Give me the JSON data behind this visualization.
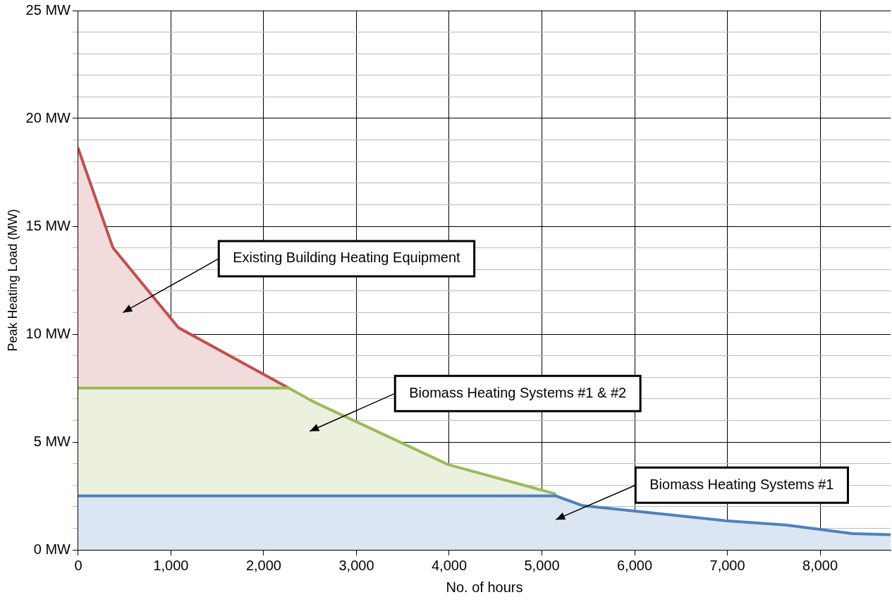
{
  "chart_data": {
    "type": "area",
    "xlabel": "No. of hours",
    "ylabel": "Peak Heating Load (MW)",
    "xlim": [
      0,
      8760
    ],
    "xticks": [
      0,
      {
        "value": 1000,
        "label": "1,000"
      },
      {
        "value": 2000,
        "label": "2,000"
      },
      {
        "value": 3000,
        "label": "3,000"
      },
      {
        "value": 4000,
        "label": "4,000"
      },
      {
        "value": 5000,
        "label": "5,000"
      },
      {
        "value": 6000,
        "label": "6,000"
      },
      {
        "value": 7000,
        "label": "7,000"
      },
      {
        "value": 8000,
        "label": "8,000"
      }
    ],
    "ylim": [
      0,
      25
    ],
    "yticks": [
      {
        "value": 0,
        "label": "0 MW"
      },
      {
        "value": 1,
        "label": null
      },
      {
        "value": 2,
        "label": null
      },
      {
        "value": 3,
        "label": null
      },
      {
        "value": 4,
        "label": null
      },
      {
        "value": 5,
        "label": "5 MW"
      },
      {
        "value": 6,
        "label": null
      },
      {
        "value": 7,
        "label": null
      },
      {
        "value": 8,
        "label": null
      },
      {
        "value": 9,
        "label": null
      },
      {
        "value": 10,
        "label": "10 MW"
      },
      {
        "value": 11,
        "label": null
      },
      {
        "value": 12,
        "label": null
      },
      {
        "value": 13,
        "label": null
      },
      {
        "value": 14,
        "label": null
      },
      {
        "value": 15,
        "label": "15 MW"
      },
      {
        "value": 16,
        "label": null
      },
      {
        "value": 17,
        "label": null
      },
      {
        "value": 18,
        "label": null
      },
      {
        "value": 19,
        "label": null
      },
      {
        "value": 20,
        "label": "20 MW"
      },
      {
        "value": 21,
        "label": null
      },
      {
        "value": 22,
        "label": null
      },
      {
        "value": 23,
        "label": null
      },
      {
        "value": 24,
        "label": null
      },
      {
        "value": 25,
        "label": "25 MW"
      }
    ],
    "grid": true,
    "legend": false,
    "series": [
      {
        "color": "#4f81bd",
        "x": [
          0,
          5150,
          5440,
          6000,
          6980,
          7630,
          8350,
          8760
        ],
        "values": [
          2.5,
          2.5,
          2.05,
          1.8,
          1.35,
          1.15,
          0.75,
          0.7
        ]
      },
      {
        "color": "#9bbb59",
        "x": [
          0,
          2270,
          2520,
          3990,
          5140
        ],
        "values": [
          7.5,
          7.5,
          6.9,
          3.95,
          2.6
        ]
      },
      {
        "color": "#c0504d",
        "x": [
          0,
          375,
          1080,
          2270
        ],
        "values": [
          18.6,
          14.0,
          10.3,
          7.5
        ]
      }
    ],
    "annotations": [
      "Existing Building Heating Equipment",
      "Biomass Heating Systems #1 & #2",
      {
        "text": "Biomass Heating Systems #1",
        "x": 5150,
        "y": 1.4
      }
    ]
  }
}
